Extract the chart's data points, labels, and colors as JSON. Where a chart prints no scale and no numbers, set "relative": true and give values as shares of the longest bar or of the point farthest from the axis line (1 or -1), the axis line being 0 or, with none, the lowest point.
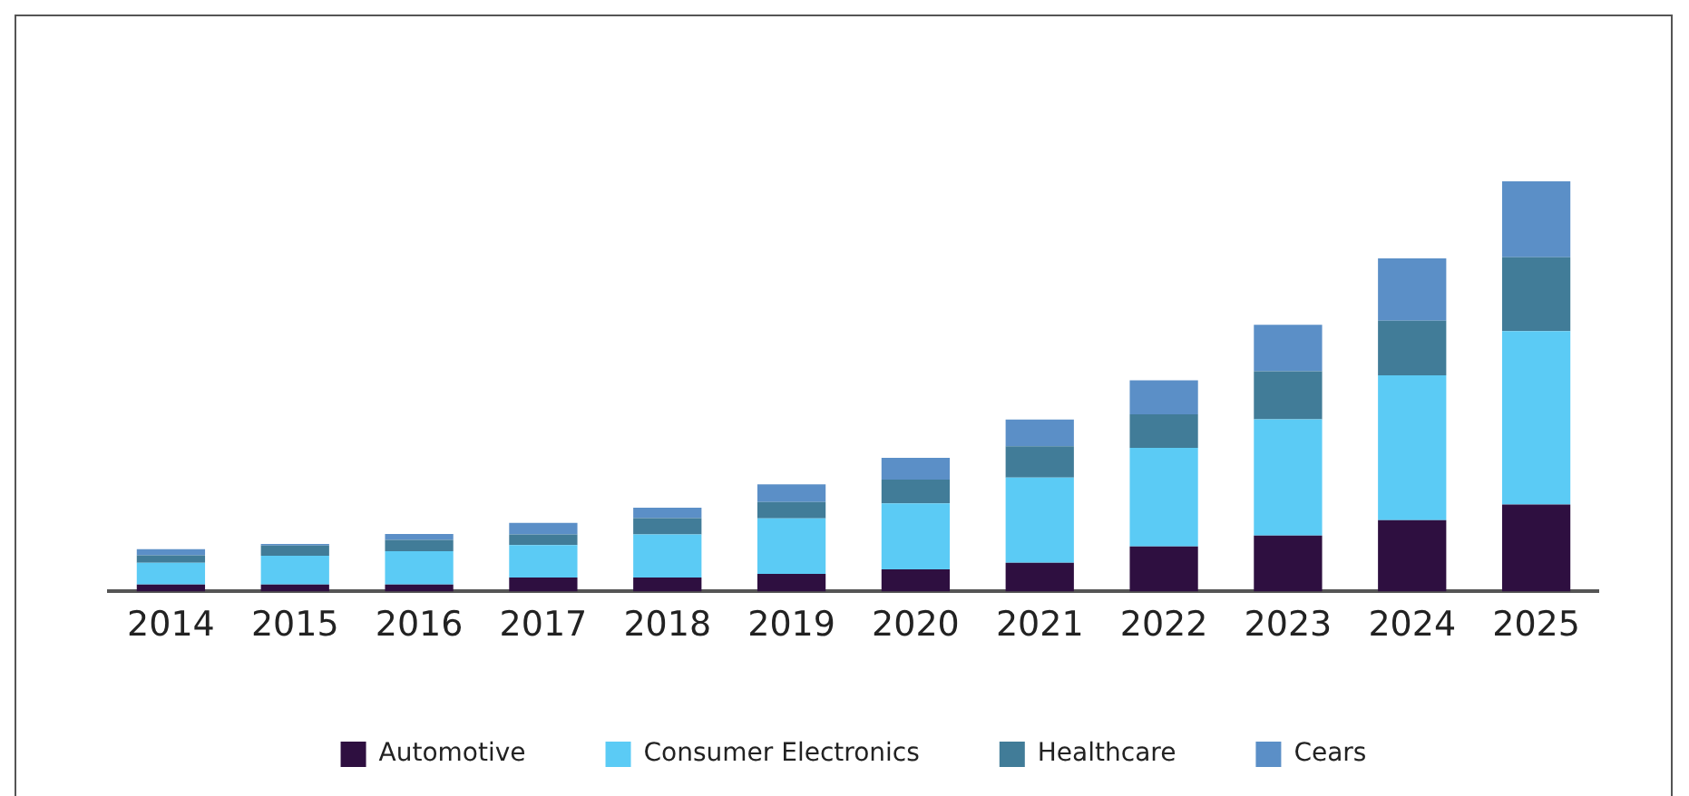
{
  "chart_data": {
    "type": "bar",
    "stacked": true,
    "relative": true,
    "grid": false,
    "legend": "bottom",
    "categories": [
      "2014",
      "2015",
      "2016",
      "2017",
      "2018",
      "2019",
      "2020",
      "2021",
      "2022",
      "2023",
      "2024",
      "2025"
    ],
    "series": [
      {
        "name": "Automotive",
        "color": "#2e0f40",
        "values": [
          0.017,
          0.017,
          0.017,
          0.034,
          0.034,
          0.043,
          0.054,
          0.07,
          0.11,
          0.136,
          0.174,
          0.212
        ]
      },
      {
        "name": "Consumer Electronics",
        "color": "#5bcbf5",
        "values": [
          0.053,
          0.07,
          0.081,
          0.079,
          0.105,
          0.135,
          0.161,
          0.208,
          0.24,
          0.284,
          0.353,
          0.423
        ]
      },
      {
        "name": "Healthcare",
        "color": "#417c98",
        "values": [
          0.018,
          0.025,
          0.028,
          0.026,
          0.04,
          0.04,
          0.058,
          0.076,
          0.082,
          0.117,
          0.133,
          0.18
        ]
      },
      {
        "name": "Cears",
        "color": "#5b8fc7",
        "values": [
          0.015,
          0.004,
          0.014,
          0.028,
          0.025,
          0.043,
          0.053,
          0.065,
          0.083,
          0.113,
          0.152,
          0.185
        ]
      }
    ]
  }
}
